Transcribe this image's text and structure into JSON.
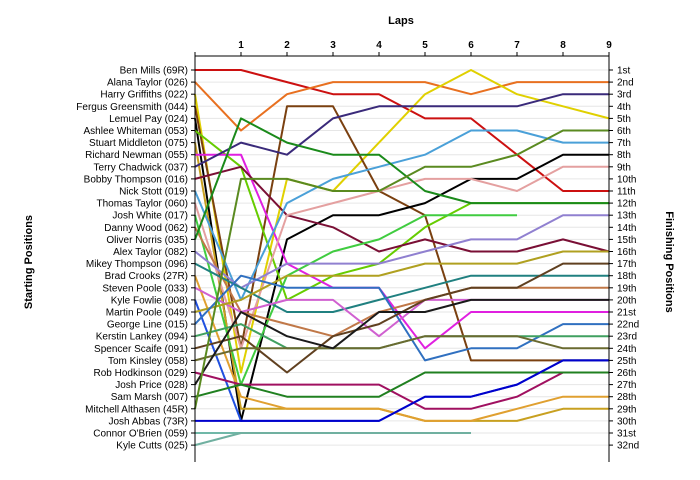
{
  "chart_data": {
    "type": "line",
    "title": "",
    "xlabel": "Laps",
    "ylabel_left": "Starting Positions",
    "ylabel_right": "Finishing Positions",
    "x": [
      0,
      1,
      2,
      3,
      4,
      5,
      6,
      7,
      8,
      9
    ],
    "x_tick_labels": [
      "1",
      "2",
      "3",
      "4",
      "5",
      "6",
      "7",
      "8",
      "9"
    ],
    "y_reversed": true,
    "ylim": [
      1,
      32
    ],
    "grid": "horizontal",
    "starting_labels": [
      "Ben Mills (69R)",
      "Alana Taylor (026)",
      "Harry Griffiths (022)",
      "Fergus Greensmith (044)",
      "Lemuel Pay (024)",
      "Ashlee Whiteman (053)",
      "Stuart Middleton (075)",
      "Richard Newman (055)",
      "Terry Chadwick (037)",
      "Bobby Thompson (016)",
      "Nick Stott (019)",
      "Thomas Taylor (060)",
      "Josh White (017)",
      "Danny Wood (062)",
      "Oliver Norris (035)",
      "Alex Taylor (082)",
      "Mikey Thompson (096)",
      "Brad Crooks (27R)",
      "Steven Poole (033)",
      "Kyle Fowlie (008)",
      "Martin Poole (049)",
      "George Line (015)",
      "Kerstin Lankey (094)",
      "Spencer Scaife (091)",
      "Tom Kinsley (058)",
      "Rob Hodkinson (029)",
      "Josh Price (028)",
      "Sam Marsh (007)",
      "Mitchell Althasen (45R)",
      "Josh Abbas (73R)",
      "Connor O'Brien (059)",
      "Kyle Cutts (025)"
    ],
    "finishing_labels": [
      "1st",
      "2nd",
      "3rd",
      "4th",
      "5th",
      "6th",
      "7th",
      "8th",
      "9th",
      "10th",
      "11th",
      "12th",
      "13th",
      "14th",
      "15th",
      "16th",
      "17th",
      "18th",
      "19th",
      "20th",
      "21st",
      "22nd",
      "23rd",
      "24th",
      "25th",
      "26th",
      "27th",
      "28th",
      "29th",
      "30th",
      "31st",
      "32nd"
    ],
    "series": [
      {
        "color": "#cc1010",
        "values": [
          1,
          1,
          2,
          3,
          3,
          5,
          5,
          8,
          11,
          11
        ]
      },
      {
        "color": "#e87020",
        "values": [
          2,
          6,
          3,
          2,
          2,
          2,
          3,
          2,
          2,
          2
        ]
      },
      {
        "color": "#e0d000",
        "values": [
          3,
          26,
          10,
          11,
          7,
          3,
          1,
          3,
          4,
          5
        ]
      },
      {
        "color": "#7a4010",
        "values": [
          4,
          24,
          4,
          4,
          11,
          13,
          25,
          25,
          25,
          25
        ]
      },
      {
        "color": "#000000",
        "values": [
          5,
          30,
          15,
          13,
          13,
          12,
          10,
          10,
          8,
          8
        ]
      },
      {
        "color": "#66cc00",
        "values": [
          6,
          9,
          20,
          18,
          17,
          14,
          12,
          12,
          12,
          12
        ]
      },
      {
        "color": "#c8a020",
        "values": [
          7,
          29,
          29,
          29,
          29,
          30,
          30,
          30,
          29,
          29
        ]
      },
      {
        "color": "#e020e0",
        "values": [
          8,
          8,
          17,
          19,
          19,
          24,
          21,
          21,
          21,
          21
        ]
      },
      {
        "color": "#3a2a7a",
        "values": [
          9,
          7,
          8,
          5,
          4,
          4,
          4,
          4,
          3,
          3
        ]
      },
      {
        "color": "#7a0f35",
        "values": [
          10,
          9,
          13,
          14,
          16,
          15,
          16,
          16,
          15,
          16
        ]
      },
      {
        "color": "#4aa0d8",
        "values": [
          11,
          20,
          12,
          10,
          9,
          8,
          6,
          6,
          7,
          7
        ]
      },
      {
        "color": "#e4a0a0",
        "values": [
          12,
          24,
          13,
          12,
          11,
          10,
          10,
          11,
          9,
          9
        ]
      },
      {
        "color": "#40cc40",
        "values": [
          13,
          27,
          18,
          16,
          15,
          13,
          13,
          13,
          null,
          null
        ]
      },
      {
        "color": "#c07848",
        "values": [
          14,
          21,
          22,
          23,
          21,
          20,
          19,
          19,
          19,
          19
        ]
      },
      {
        "color": "#1a8a1a",
        "values": [
          15,
          5,
          7,
          8,
          8,
          11,
          12,
          12,
          12,
          12
        ]
      },
      {
        "color": "#9080d0",
        "values": [
          16,
          19,
          17,
          17,
          17,
          16,
          15,
          15,
          13,
          13
        ]
      },
      {
        "color": "#208080",
        "values": [
          17,
          19,
          21,
          21,
          20,
          19,
          18,
          18,
          18,
          18
        ]
      },
      {
        "color": "#e0a030",
        "values": [
          18,
          28,
          29,
          29,
          29,
          30,
          30,
          29,
          28,
          28
        ]
      },
      {
        "color": "#d060d0",
        "values": [
          19,
          21,
          20,
          20,
          23,
          20,
          20,
          20,
          20,
          20
        ]
      },
      {
        "color": "#2050e0",
        "values": [
          20,
          30,
          30,
          30,
          30,
          28,
          28,
          27,
          25,
          25
        ]
      },
      {
        "color": "#b0a020",
        "values": [
          21,
          20,
          18,
          18,
          18,
          17,
          17,
          17,
          16,
          16
        ]
      },
      {
        "color": "#3070c0",
        "values": [
          22,
          18,
          19,
          19,
          19,
          25,
          24,
          24,
          22,
          22
        ]
      },
      {
        "color": "#40a060",
        "values": [
          23,
          22,
          24,
          24,
          24,
          23,
          23,
          23,
          23,
          23
        ]
      },
      {
        "color": "#604020",
        "values": [
          24,
          23,
          26,
          23,
          22,
          20,
          19,
          19,
          17,
          17
        ]
      },
      {
        "color": "#6a6a30",
        "values": [
          25,
          24,
          24,
          24,
          24,
          23,
          23,
          23,
          24,
          24
        ]
      },
      {
        "color": "#a01060",
        "values": [
          26,
          27,
          27,
          27,
          27,
          29,
          29,
          28,
          26,
          26
        ]
      },
      {
        "color": "#1a1a1a",
        "values": [
          27,
          21,
          23,
          24,
          21,
          21,
          20,
          20,
          20,
          20
        ]
      },
      {
        "color": "#208020",
        "values": [
          28,
          27,
          28,
          28,
          28,
          26,
          26,
          26,
          26,
          26
        ]
      },
      {
        "color": "#5a8a20",
        "values": [
          29,
          10,
          10,
          11,
          11,
          9,
          9,
          8,
          6,
          6
        ]
      },
      {
        "color": "#0000cc",
        "values": [
          30,
          30,
          30,
          30,
          30,
          28,
          28,
          27,
          25,
          25
        ]
      },
      {
        "color": "#70b8a8",
        "values": [
          31,
          31,
          31,
          31,
          31,
          31,
          31,
          null,
          null,
          null
        ]
      },
      {
        "color": "#70b0a0",
        "values": [
          32,
          31,
          31,
          31,
          31,
          31,
          31,
          null,
          null,
          null
        ]
      }
    ]
  }
}
